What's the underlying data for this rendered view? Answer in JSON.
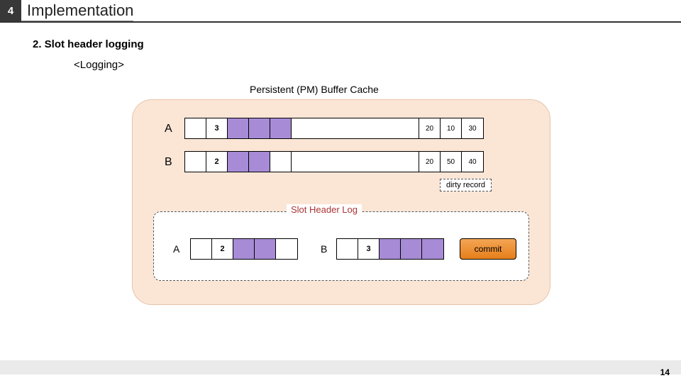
{
  "header": {
    "num": "4",
    "title": "Implementation"
  },
  "subtitle": "2.  Slot header logging",
  "logging_label": "<Logging>",
  "cache": {
    "title": "Persistent (PM) Buffer Cache",
    "rows": [
      {
        "label": "A",
        "cells": [
          {
            "v": "",
            "purple": false
          },
          {
            "v": "3",
            "purple": false
          },
          {
            "v": "",
            "purple": true
          },
          {
            "v": "",
            "purple": true
          },
          {
            "v": "",
            "purple": true
          },
          {
            "v": "",
            "purple": false,
            "wide": true
          },
          {
            "v": "20",
            "num": true
          },
          {
            "v": "10",
            "num": true
          },
          {
            "v": "30",
            "num": true
          }
        ]
      },
      {
        "label": "B",
        "cells": [
          {
            "v": "",
            "purple": false
          },
          {
            "v": "2",
            "purple": false
          },
          {
            "v": "",
            "purple": true
          },
          {
            "v": "",
            "purple": true
          },
          {
            "v": "",
            "purple": false
          },
          {
            "v": "",
            "purple": false,
            "wide": true
          },
          {
            "v": "20",
            "num": true
          },
          {
            "v": "50",
            "num": true
          },
          {
            "v": "40",
            "num": true
          }
        ]
      }
    ]
  },
  "dirty_label": "dirty record",
  "log": {
    "title": "Slot Header Log",
    "entries": [
      {
        "label": "A",
        "cells": [
          {
            "v": "",
            "purple": false
          },
          {
            "v": "2",
            "purple": false
          },
          {
            "v": "",
            "purple": true
          },
          {
            "v": "",
            "purple": true
          },
          {
            "v": "",
            "purple": false
          }
        ]
      },
      {
        "label": "B",
        "cells": [
          {
            "v": "",
            "purple": false
          },
          {
            "v": "3",
            "purple": false
          },
          {
            "v": "",
            "purple": true
          },
          {
            "v": "",
            "purple": true
          },
          {
            "v": "",
            "purple": true
          }
        ]
      }
    ],
    "commit": "commit"
  },
  "page_num": "14",
  "colors": {
    "purple": "#a78bd6",
    "cache_bg": "#fbe6d6",
    "commit_grad_top": "#f5a555",
    "commit_grad_bot": "#e57f1a"
  }
}
